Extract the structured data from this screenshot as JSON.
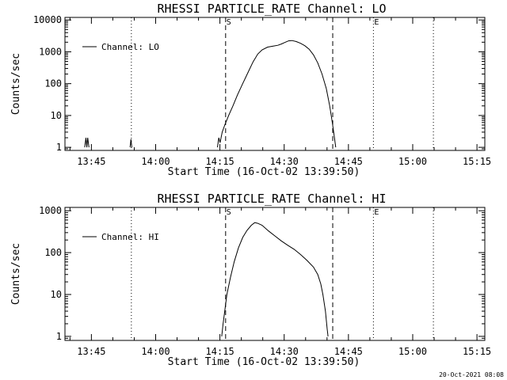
{
  "footer": {
    "timestamp": "20-Oct-2021 08:08"
  },
  "chart_data": [
    {
      "type": "line",
      "title": "RHESSI PARTICLE_RATE Channel: LO",
      "xlabel": "Start Time (16-Oct-02 13:39:50)",
      "ylabel": "Counts/sec",
      "y_scale": "log",
      "ylim": [
        0.8,
        12000
      ],
      "xlim_minutes": [
        -1,
        97
      ],
      "x_ticks": [
        {
          "t": 5.17,
          "label": "13:45"
        },
        {
          "t": 20.17,
          "label": "14:00"
        },
        {
          "t": 35.17,
          "label": "14:15"
        },
        {
          "t": 50.17,
          "label": "14:30"
        },
        {
          "t": 65.17,
          "label": "14:45"
        },
        {
          "t": 80.17,
          "label": "15:00"
        },
        {
          "t": 95.17,
          "label": "15:15"
        }
      ],
      "y_ticks": [
        {
          "v": 1,
          "label": "1"
        },
        {
          "v": 10,
          "label": "10"
        },
        {
          "v": 100,
          "label": "100"
        },
        {
          "v": 1000,
          "label": "1000"
        },
        {
          "v": 10000,
          "label": "10000"
        }
      ],
      "legend": {
        "label": "Channel: LO",
        "position": "top-left"
      },
      "markers": [
        {
          "t": 14.5,
          "style": "dotted",
          "label": ""
        },
        {
          "t": 36.5,
          "style": "dashed",
          "label": "S"
        },
        {
          "t": 61.5,
          "style": "dashed",
          "label": ""
        },
        {
          "t": 71.0,
          "style": "dotted",
          "label": "E"
        },
        {
          "t": 85.0,
          "style": "dotted",
          "label": ""
        }
      ],
      "series": [
        {
          "name": "Channel: LO",
          "segments": [
            [
              [
                3.6,
                1
              ],
              [
                3.9,
                2
              ],
              [
                4.1,
                1
              ],
              [
                4.3,
                2
              ],
              [
                4.6,
                1
              ]
            ],
            [
              [
                14.2,
                1
              ],
              [
                14.4,
                1.8
              ],
              [
                14.6,
                1
              ]
            ],
            [
              [
                34.6,
                1
              ],
              [
                34.9,
                2
              ],
              [
                35.2,
                1.4
              ],
              [
                35.7,
                3
              ],
              [
                36.3,
                5
              ],
              [
                37.2,
                10
              ],
              [
                38.2,
                20
              ],
              [
                39.3,
                45
              ],
              [
                40.5,
                100
              ],
              [
                41.7,
                220
              ],
              [
                42.9,
                480
              ],
              [
                44.0,
                850
              ],
              [
                45.0,
                1150
              ],
              [
                46.3,
                1400
              ],
              [
                47.6,
                1500
              ],
              [
                48.7,
                1600
              ],
              [
                49.5,
                1750
              ],
              [
                50.3,
                1950
              ],
              [
                51.2,
                2200
              ],
              [
                52.0,
                2250
              ],
              [
                53.0,
                2100
              ],
              [
                54.0,
                1850
              ],
              [
                55.0,
                1550
              ],
              [
                56.0,
                1200
              ],
              [
                57.0,
                800
              ],
              [
                58.0,
                450
              ],
              [
                59.0,
                200
              ],
              [
                60.0,
                70
              ],
              [
                60.8,
                20
              ],
              [
                61.4,
                6
              ],
              [
                61.9,
                2
              ],
              [
                62.2,
                1
              ]
            ]
          ]
        }
      ]
    },
    {
      "type": "line",
      "title": "RHESSI PARTICLE_RATE Channel: HI",
      "xlabel": "Start Time (16-Oct-02 13:39:50)",
      "ylabel": "Counts/sec",
      "y_scale": "log",
      "ylim": [
        0.8,
        1200
      ],
      "xlim_minutes": [
        -1,
        97
      ],
      "x_ticks": [
        {
          "t": 5.17,
          "label": "13:45"
        },
        {
          "t": 20.17,
          "label": "14:00"
        },
        {
          "t": 35.17,
          "label": "14:15"
        },
        {
          "t": 50.17,
          "label": "14:30"
        },
        {
          "t": 65.17,
          "label": "14:45"
        },
        {
          "t": 80.17,
          "label": "15:00"
        },
        {
          "t": 95.17,
          "label": "15:15"
        }
      ],
      "y_ticks": [
        {
          "v": 1,
          "label": "1"
        },
        {
          "v": 10,
          "label": "10"
        },
        {
          "v": 100,
          "label": "100"
        },
        {
          "v": 1000,
          "label": "1000"
        }
      ],
      "legend": {
        "label": "Channel: HI",
        "position": "top-left"
      },
      "markers": [
        {
          "t": 14.5,
          "style": "dotted",
          "label": ""
        },
        {
          "t": 36.5,
          "style": "dashed",
          "label": "S"
        },
        {
          "t": 61.5,
          "style": "dashed",
          "label": ""
        },
        {
          "t": 71.0,
          "style": "dotted",
          "label": "E"
        },
        {
          "t": 85.0,
          "style": "dotted",
          "label": ""
        }
      ],
      "series": [
        {
          "name": "Channel: HI",
          "segments": [
            [
              [
                35.6,
                1
              ],
              [
                35.9,
                2
              ],
              [
                36.3,
                4
              ],
              [
                36.8,
                10
              ],
              [
                37.6,
                25
              ],
              [
                38.5,
                60
              ],
              [
                39.5,
                130
              ],
              [
                40.5,
                230
              ],
              [
                41.5,
                340
              ],
              [
                42.5,
                450
              ],
              [
                43.3,
                520
              ],
              [
                44.0,
                500
              ],
              [
                45.0,
                450
              ],
              [
                46.5,
                330
              ],
              [
                48.0,
                250
              ],
              [
                49.5,
                190
              ],
              [
                51.0,
                150
              ],
              [
                52.5,
                120
              ],
              [
                54.0,
                90
              ],
              [
                55.5,
                65
              ],
              [
                57.0,
                45
              ],
              [
                58.0,
                30
              ],
              [
                58.7,
                18
              ],
              [
                59.2,
                10
              ],
              [
                59.8,
                4
              ],
              [
                60.2,
                1.5
              ],
              [
                60.4,
                1
              ]
            ]
          ]
        }
      ]
    }
  ]
}
